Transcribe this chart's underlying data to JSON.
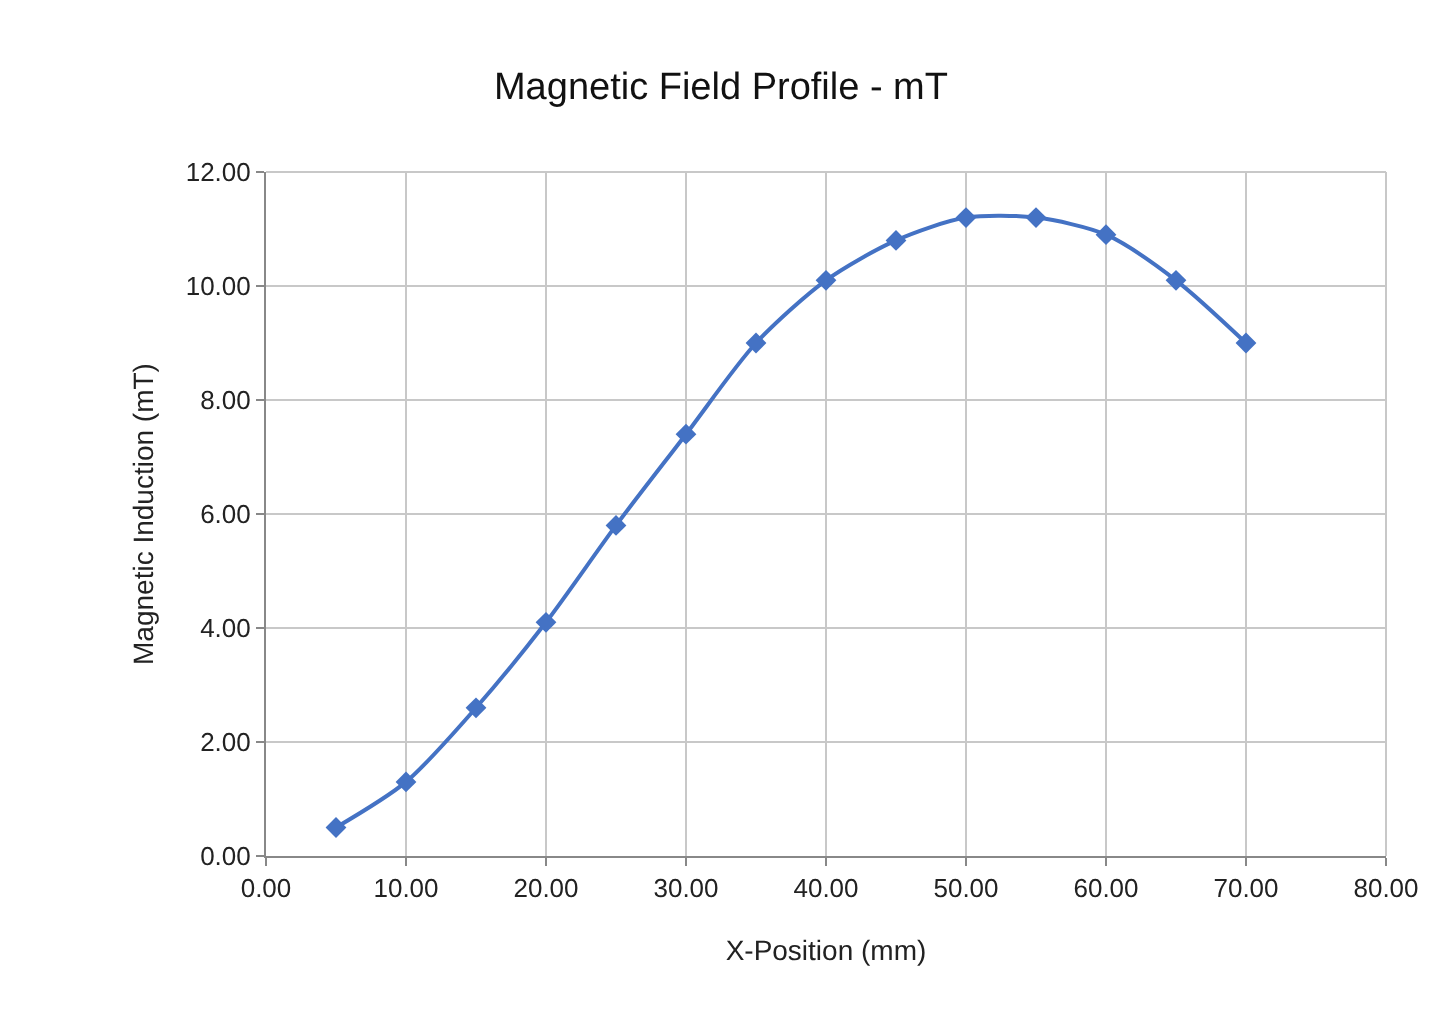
{
  "chart_data": {
    "type": "line",
    "title": "Magnetic Field Profile - mT",
    "xlabel": "X-Position (mm)",
    "ylabel": "Magnetic Induction (mT)",
    "x": [
      5,
      10,
      15,
      20,
      25,
      30,
      35,
      40,
      45,
      50,
      55,
      60,
      65,
      70
    ],
    "series": [
      {
        "color": "#4472c4",
        "values": [
          0.5,
          1.3,
          2.6,
          4.1,
          5.8,
          7.4,
          9.0,
          10.1,
          10.8,
          11.2,
          11.2,
          10.9,
          10.1,
          9.0
        ]
      }
    ],
    "xlim": [
      0,
      80
    ],
    "xticks": [
      {
        "value": 0,
        "label": "0.00"
      },
      {
        "value": 10,
        "label": "10.00"
      },
      {
        "value": 20,
        "label": "20.00"
      },
      {
        "value": 30,
        "label": "30.00"
      },
      {
        "value": 40,
        "label": "40.00"
      },
      {
        "value": 50,
        "label": "50.00"
      },
      {
        "value": 60,
        "label": "60.00"
      },
      {
        "value": 70,
        "label": "70.00"
      },
      {
        "value": 80,
        "label": "80.00"
      }
    ],
    "ylim": [
      0,
      12
    ],
    "yticks": [
      {
        "value": 0,
        "label": "0.00"
      },
      {
        "value": 2,
        "label": "2.00"
      },
      {
        "value": 4,
        "label": "4.00"
      },
      {
        "value": 6,
        "label": "6.00"
      },
      {
        "value": 8,
        "label": "8.00"
      },
      {
        "value": 10,
        "label": "10.00"
      },
      {
        "value": 12,
        "label": "12.00"
      }
    ],
    "grid": true,
    "marker": "diamond",
    "line_style": "solid"
  }
}
